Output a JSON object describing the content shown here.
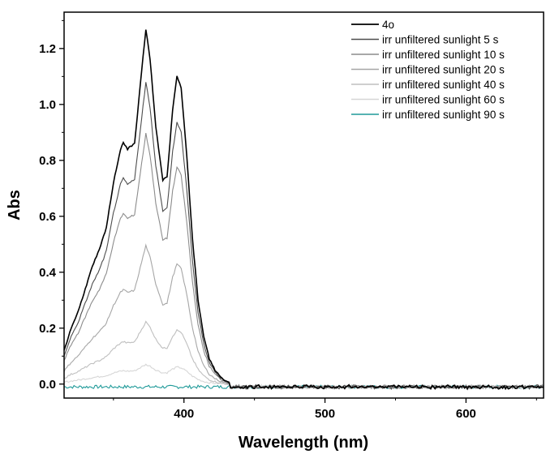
{
  "chart_data": {
    "type": "line",
    "xlabel": "Wavelength (nm)",
    "ylabel": "Abs",
    "xlim": [
      315,
      655
    ],
    "ylim": [
      -0.05,
      1.33
    ],
    "x_ticks": [
      400,
      500,
      600
    ],
    "x_tick_labels": [
      "400",
      "500",
      "600"
    ],
    "y_ticks": [
      0.0,
      0.2,
      0.4,
      0.6,
      0.8,
      1.0,
      1.2
    ],
    "y_tick_labels": [
      "0.0",
      "0.2",
      "0.4",
      "0.6",
      "0.8",
      "1.0",
      "1.2"
    ],
    "legend_position": "top-right",
    "grid": false,
    "series": [
      {
        "name": "4o",
        "color": "#000000",
        "scale": 1.0
      },
      {
        "name": "irr unfiltered sunlight 5 s",
        "color": "#4d4d4d",
        "scale": 0.85
      },
      {
        "name": "irr unfiltered sunlight 10 s",
        "color": "#8c8c8c",
        "scale": 0.705
      },
      {
        "name": "irr unfiltered sunlight 20 s",
        "color": "#a6a6a6",
        "scale": 0.39
      },
      {
        "name": "irr unfiltered sunlight 40 s",
        "color": "#bfbfbf",
        "scale": 0.175
      },
      {
        "name": "irr unfiltered sunlight 60 s",
        "color": "#d6d6d6",
        "scale": 0.055
      },
      {
        "name": "irr unfiltered sunlight 90 s",
        "color": "#1f9a99",
        "scale": 0.0
      }
    ],
    "reference_spectrum": {
      "x": [
        315,
        320,
        325,
        330,
        335,
        340,
        345,
        350,
        355,
        357,
        360,
        365,
        370,
        373,
        376,
        380,
        385,
        388,
        392,
        395,
        398,
        402,
        406,
        410,
        414,
        418,
        422,
        426,
        430,
        435,
        440,
        450
      ],
      "y": [
        0.12,
        0.2,
        0.26,
        0.34,
        0.42,
        0.48,
        0.56,
        0.72,
        0.84,
        0.865,
        0.84,
        0.86,
        1.12,
        1.27,
        1.16,
        0.92,
        0.73,
        0.74,
        0.98,
        1.1,
        1.06,
        0.82,
        0.52,
        0.3,
        0.17,
        0.09,
        0.05,
        0.025,
        0.01,
        0.0,
        -0.005,
        -0.01
      ]
    },
    "baseline_level": -0.01
  }
}
